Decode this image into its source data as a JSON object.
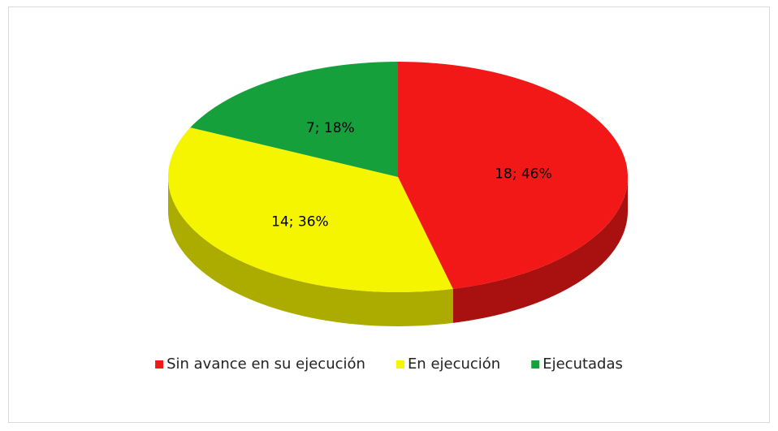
{
  "chart_data": {
    "type": "pie",
    "categories": [
      "Sin avance en su ejecución",
      "En ejecución",
      "Ejecutadas"
    ],
    "values": [
      18,
      14,
      7
    ],
    "value_labels": [
      "18; 46%",
      "14; 36%",
      "7; 18%"
    ],
    "colors": [
      "#f21818",
      "#f5f500",
      "#16a03c"
    ],
    "legend": "bottom"
  }
}
